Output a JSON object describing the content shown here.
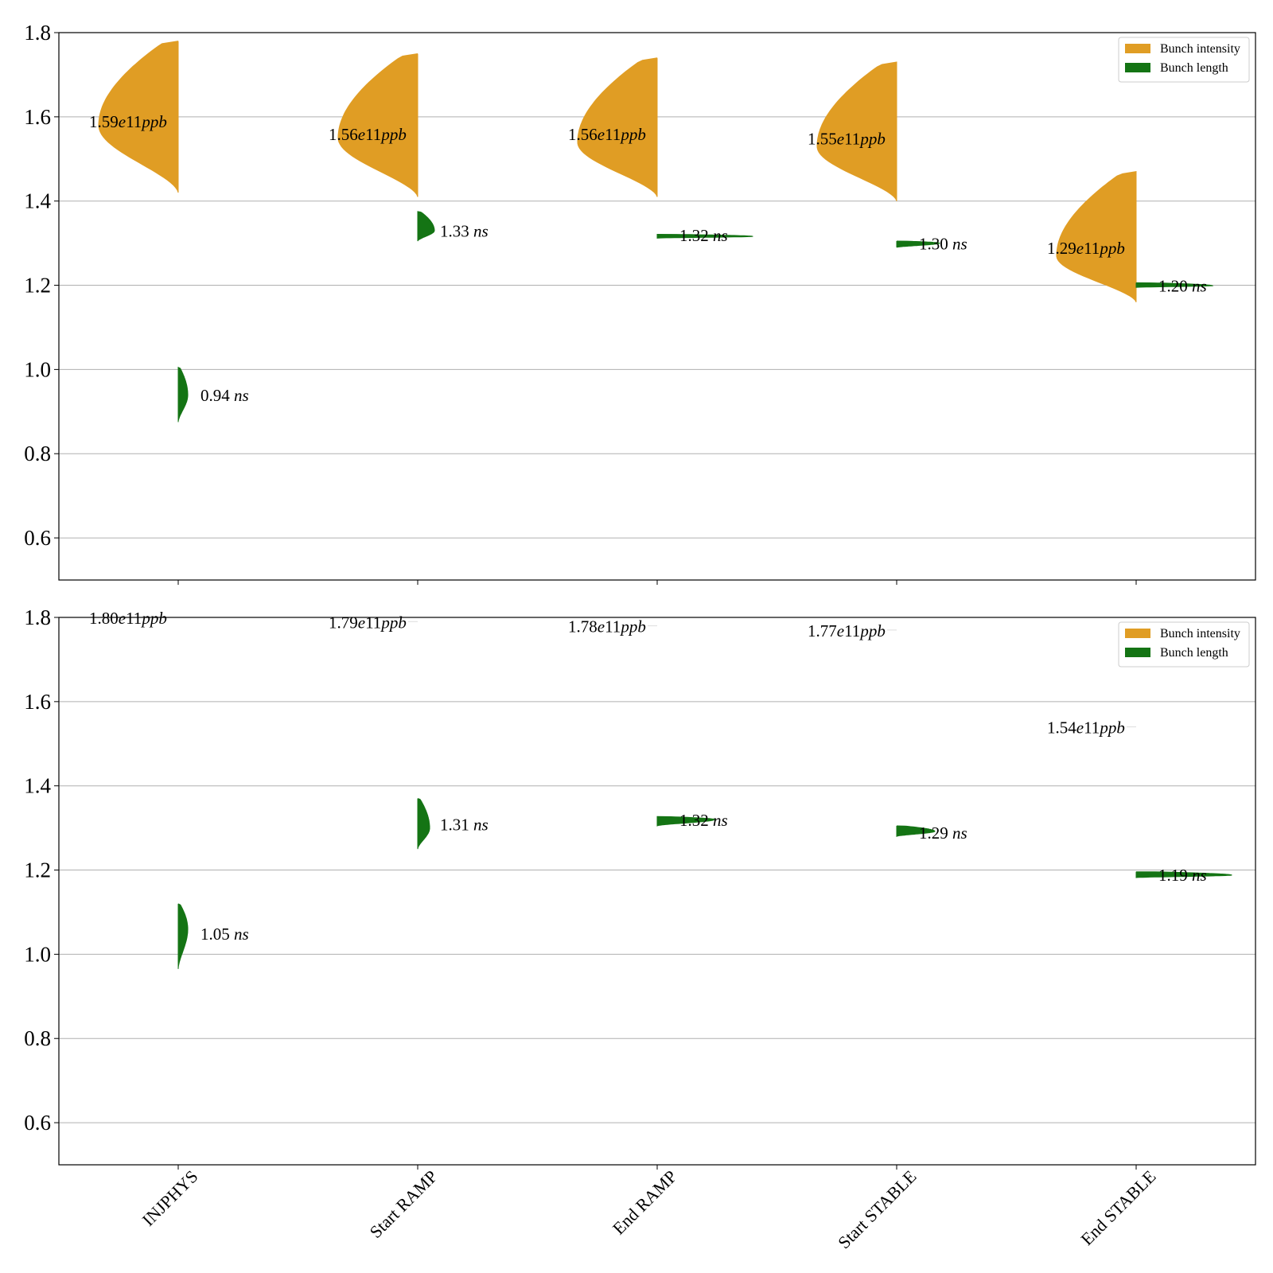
{
  "colors": {
    "intensity": "#e09d24",
    "length": "#147414",
    "grid": "#b0b0b0",
    "axis": "#000000"
  },
  "categories": [
    "INJPHYS",
    "Start RAMP",
    "End RAMP",
    "Start STABLE",
    "End STABLE"
  ],
  "chart_data": [
    {
      "type": "violin",
      "ylim": [
        0.5,
        1.8
      ],
      "yticks": [
        0.6,
        0.8,
        1.0,
        1.2,
        1.4,
        1.6,
        1.8
      ],
      "grid": true,
      "legend": {
        "position": "top-right",
        "entries": [
          "Bunch intensity",
          "Bunch length"
        ]
      },
      "series": [
        {
          "name": "Bunch intensity",
          "side": "left",
          "median_labels": [
            "1.59e11ppb",
            "1.56e11ppb",
            "1.56e11ppb",
            "1.55e11ppb",
            "1.29e11ppb"
          ],
          "medians": [
            1.59,
            1.56,
            1.56,
            1.55,
            1.29
          ],
          "min": [
            1.42,
            1.41,
            1.41,
            1.4,
            1.16
          ],
          "max": [
            1.78,
            1.75,
            1.74,
            1.73,
            1.47
          ],
          "mode": [
            1.58,
            1.55,
            1.54,
            1.53,
            1.27
          ]
        },
        {
          "name": "Bunch length",
          "side": "right",
          "median_labels": [
            "0.94 ns",
            "1.33 ns",
            "1.32 ns",
            "1.30 ns",
            "1.20 ns"
          ],
          "medians": [
            0.94,
            1.33,
            1.32,
            1.3,
            1.2
          ],
          "min": [
            0.875,
            1.305,
            1.312,
            1.29,
            1.195
          ],
          "max": [
            1.005,
            1.375,
            1.321,
            1.305,
            1.206
          ],
          "mode": [
            0.94,
            1.33,
            1.316,
            1.3,
            1.199
          ],
          "width_factor": [
            0.2,
            0.35,
            2.0,
            0.9,
            1.6
          ]
        }
      ]
    },
    {
      "type": "violin",
      "ylim": [
        0.5,
        1.8
      ],
      "yticks": [
        0.6,
        0.8,
        1.0,
        1.2,
        1.4,
        1.6,
        1.8
      ],
      "grid": true,
      "legend": {
        "position": "top-right",
        "entries": [
          "Bunch intensity",
          "Bunch length"
        ]
      },
      "series": [
        {
          "name": "Bunch intensity",
          "side": "left",
          "median_labels": [
            "1.80e11ppb",
            "1.79e11ppb",
            "1.78e11ppb",
            "1.77e11ppb",
            "1.54e11ppb"
          ],
          "medians": [
            1.8,
            1.79,
            1.78,
            1.77,
            1.54
          ],
          "min": [
            null,
            null,
            null,
            null,
            null
          ],
          "max": [
            null,
            null,
            null,
            null,
            null
          ]
        },
        {
          "name": "Bunch length",
          "side": "right",
          "median_labels": [
            "1.05 ns",
            "1.31 ns",
            "1.32 ns",
            "1.29 ns",
            "1.19 ns"
          ],
          "medians": [
            1.05,
            1.31,
            1.32,
            1.29,
            1.19
          ],
          "min": [
            0.965,
            1.25,
            1.305,
            1.28,
            1.182
          ],
          "max": [
            1.12,
            1.37,
            1.327,
            1.305,
            1.196
          ],
          "mode": [
            1.06,
            1.3,
            1.32,
            1.292,
            1.188
          ],
          "width_factor": [
            0.2,
            0.25,
            1.2,
            0.8,
            2.0
          ]
        }
      ]
    }
  ]
}
